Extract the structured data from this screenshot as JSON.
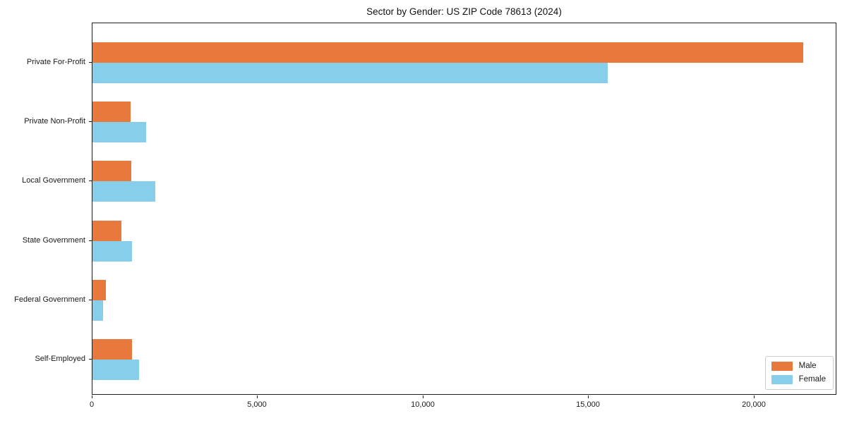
{
  "page": {
    "background_color": "#ffffff",
    "text_color": "#1a1a1a",
    "axis_color": "#1d1d1d"
  },
  "chart_data": {
    "type": "bar",
    "orientation": "horizontal",
    "title": "Sector by Gender: US ZIP Code 78613 (2024)",
    "xlabel": "",
    "ylabel": "",
    "categories": [
      "Private For-Profit",
      "Private Non-Profit",
      "Local Government",
      "State Government",
      "Federal Government",
      "Self-Employed"
    ],
    "series": [
      {
        "name": "Male",
        "color": "#e8793c",
        "values": [
          21470,
          1150,
          1170,
          870,
          410,
          1190
        ]
      },
      {
        "name": "Female",
        "color": "#87ceeb",
        "values": [
          15560,
          1620,
          1900,
          1200,
          330,
          1400
        ]
      }
    ],
    "xlim": [
      0,
      22500
    ],
    "x_ticks": [
      {
        "value": 0,
        "label": "0"
      },
      {
        "value": 5000,
        "label": "5,000"
      },
      {
        "value": 10000,
        "label": "10,000"
      },
      {
        "value": 15000,
        "label": "15,000"
      },
      {
        "value": 20000,
        "label": "20,000"
      }
    ],
    "grid": false,
    "legend": {
      "position": "lower right",
      "entries": [
        "Male",
        "Female"
      ]
    },
    "bar_height_fraction": 0.35
  }
}
